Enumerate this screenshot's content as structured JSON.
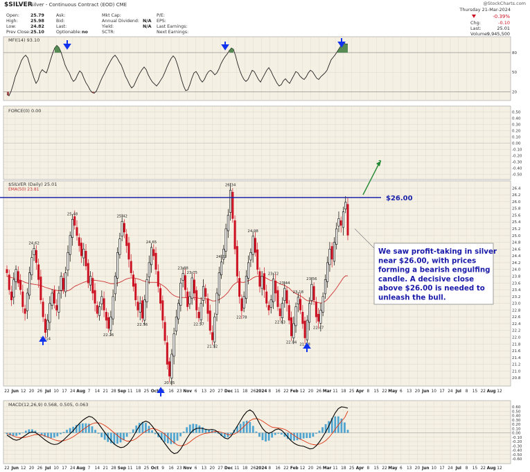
{
  "header": {
    "symbol_title": "$SILVER",
    "subtitle": "Silver - Continuous Contract (EOD) CME",
    "credit": "@StockCharts.com",
    "date": "Thursday  21-Mar-2024",
    "quote_col1": [
      [
        "Open:",
        "25.79"
      ],
      [
        "High:",
        "25.98"
      ],
      [
        "Low:",
        "24.82"
      ],
      [
        "Prev Close:",
        "25.10"
      ]
    ],
    "quote_col2": [
      [
        "Ask:",
        ""
      ],
      [
        "Bid:",
        ""
      ],
      [
        "Last:",
        ""
      ],
      [
        "Optionable:",
        "no"
      ]
    ],
    "quote_col3": [
      [
        "Mkt Cap:",
        ""
      ],
      [
        "Annual Dividend:",
        "N/A"
      ],
      [
        "Yield:",
        "N/A"
      ],
      [
        "SCTR:",
        ""
      ]
    ],
    "quote_col4": [
      [
        "P/E:",
        ""
      ],
      [
        "EPS:",
        ""
      ],
      [
        "Last Earnings:",
        ""
      ],
      [
        "Next Earnings:",
        ""
      ]
    ],
    "change_pct": "-0.39%",
    "chg_label": "Chg:",
    "chg_value": "-0.10",
    "last_label": "Last:",
    "last_value": "25.01",
    "volume_label": "Volume:",
    "volume_value": "9,945,500"
  },
  "panels": {
    "mfi_label": "MFI(14) 93.10",
    "force_label": "FORCE(0) 0.00",
    "price_label": "$SILVER (Daily) 25.01",
    "ema_label": "EMA(50) 23.81",
    "macd_label": "MACD(12,26,9) 0.568, 0.505, 0.063"
  },
  "annotation": {
    "level_label": "$26.00",
    "question_mark": "?",
    "note_lines": [
      "We saw profit-taking in silver",
      "near $26.00, with prices",
      "forming a bearish engulfing",
      "candle. A decisive close",
      "above $26.00 is needed to",
      "unleash the bull."
    ]
  },
  "colors": {
    "panel_bg": "#f5f0e4",
    "grid": "#ddd6c6",
    "price_up": "#000000",
    "price_down": "#cc1122",
    "ema": "#cc3333",
    "resistance": "#1a22aa",
    "macd_line": "#000000",
    "signal_line": "#dd3311",
    "histogram": "#3399cc",
    "arrow_blue": "#1133ee",
    "arrow_green": "#228833",
    "note_text": "#1a1aaa"
  },
  "x_axis": {
    "labels": [
      "22",
      "Jun",
      "12",
      "20",
      "26",
      "Jul",
      "10",
      "17",
      "24",
      "Aug",
      "7",
      "14",
      "21",
      "28",
      "Sep",
      "11",
      "18",
      "25",
      "Oct",
      "9",
      "16",
      "23",
      "Nov",
      "6",
      "13",
      "20",
      "27",
      "Dec",
      "11",
      "18",
      "26",
      "2024",
      "8",
      "16",
      "22",
      "Feb",
      "12",
      "20",
      "26",
      "Mar",
      "11",
      "18",
      "25",
      "Apr",
      "8",
      "15",
      "22",
      "May",
      "6",
      "13",
      "20",
      "Jun",
      "10",
      "17",
      "24",
      "Jul",
      "8",
      "15",
      "22",
      "Aug",
      "12"
    ]
  },
  "chart_data": [
    {
      "type": "line",
      "name": "MFI(14)",
      "y_ticks": [
        "80",
        "50",
        "20"
      ],
      "ylim": [
        10,
        100
      ],
      "reference_lines": [
        80,
        20
      ],
      "values": [
        16,
        14,
        21,
        31,
        43,
        51,
        59,
        68,
        73,
        76,
        72,
        61,
        51,
        41,
        33,
        38,
        49,
        54,
        51,
        49,
        58,
        69,
        79,
        87,
        91,
        88,
        81,
        71,
        61,
        54,
        49,
        41,
        36,
        39,
        46,
        52,
        49,
        41,
        34,
        29,
        23,
        19,
        18,
        21,
        28,
        36,
        43,
        49,
        56,
        62,
        68,
        73,
        76,
        72,
        66,
        61,
        53,
        44,
        38,
        31,
        26,
        29,
        36,
        43,
        49,
        54,
        58,
        54,
        46,
        40,
        35,
        32,
        29,
        33,
        38,
        43,
        50,
        58,
        65,
        71,
        75,
        71,
        62,
        51,
        39,
        29,
        22,
        23,
        31,
        41,
        49,
        51,
        46,
        39,
        35,
        39,
        46,
        51,
        53,
        50,
        46,
        49,
        55,
        63,
        69,
        74,
        78,
        83,
        87,
        85,
        75,
        63,
        53,
        45,
        39,
        36,
        39,
        46,
        53,
        51,
        45,
        39,
        35,
        41,
        47,
        53,
        57,
        52,
        45,
        39,
        33,
        29,
        31,
        37,
        40,
        36,
        33,
        39,
        45,
        51,
        49,
        44,
        41,
        39,
        43,
        49,
        53,
        51,
        46,
        41,
        39,
        43,
        46,
        49,
        53,
        61,
        69,
        73,
        77,
        82,
        87,
        92,
        95,
        93,
        93
      ]
    },
    {
      "type": "line",
      "name": "FORCE(0)",
      "y_ticks": [
        "0.50",
        "0.40",
        "0.30",
        "0.20",
        "0.10",
        "0.00",
        "-0.10",
        "-0.20",
        "-0.30",
        "-0.40",
        "-0.50"
      ],
      "ylim": [
        -0.55,
        0.55
      ],
      "values": []
    },
    {
      "type": "candlestick",
      "name": "$SILVER (Daily)",
      "y_ticks": [
        "26.4",
        "26.2",
        "26.0",
        "25.8",
        "25.6",
        "25.4",
        "25.2",
        "25.0",
        "24.8",
        "24.6",
        "24.4",
        "24.2",
        "24.0",
        "23.8",
        "23.6",
        "23.4",
        "23.2",
        "23.0",
        "22.8",
        "22.6",
        "22.4",
        "22.2",
        "22.0",
        "21.8",
        "21.6",
        "21.4",
        "21.2",
        "21.0",
        "20.8"
      ],
      "ylim": [
        20.6,
        26.55
      ],
      "resistance": 26.0,
      "closes": [
        23.9,
        23.4,
        23.1,
        23.7,
        24.0,
        23.6,
        23.4,
        22.9,
        22.7,
        23.3,
        23.9,
        24.35,
        24.62,
        24.2,
        23.7,
        23.1,
        22.6,
        22.14,
        22.5,
        23.0,
        23.3,
        23.0,
        22.8,
        23.3,
        23.8,
        23.4,
        23.9,
        24.5,
        25.0,
        25.48,
        25.3,
        25.0,
        24.7,
        24.4,
        24.6,
        24.1,
        23.6,
        23.8,
        23.3,
        23.0,
        22.7,
        22.9,
        23.2,
        22.8,
        22.5,
        22.26,
        22.6,
        23.2,
        23.8,
        24.5,
        24.9,
        25.42,
        25.1,
        24.7,
        24.3,
        23.9,
        23.5,
        23.1,
        22.8,
        23.0,
        22.56,
        23.1,
        23.7,
        24.2,
        24.65,
        24.4,
        24.0,
        23.5,
        23.0,
        22.5,
        21.9,
        21.2,
        20.85,
        21.5,
        22.1,
        22.6,
        23.0,
        23.6,
        23.88,
        23.4,
        22.9,
        23.2,
        23.75,
        23.3,
        22.8,
        22.57,
        23.0,
        23.5,
        23.2,
        22.7,
        22.2,
        21.92,
        22.6,
        23.3,
        23.9,
        24.22,
        24.6,
        25.2,
        25.6,
        26.34,
        25.5,
        24.6,
        23.8,
        23.2,
        22.78,
        23.2,
        23.8,
        24.2,
        24.5,
        24.98,
        24.5,
        24.0,
        23.5,
        23.8,
        23.4,
        23.0,
        22.8,
        23.1,
        23.72,
        23.3,
        22.9,
        22.63,
        23.0,
        23.44,
        23.0,
        22.5,
        22.04,
        22.4,
        22.9,
        23.18,
        22.8,
        22.4,
        21.98,
        22.5,
        23.0,
        23.56,
        23.1,
        22.6,
        22.47,
        22.8,
        23.2,
        23.7,
        24.2,
        24.6,
        24.3,
        24.8,
        25.2,
        25.5,
        25.3,
        25.7,
        25.98,
        25.01
      ],
      "ema_values": [
        23.8,
        23.78,
        23.76,
        23.74,
        23.72,
        23.7,
        23.68,
        23.65,
        23.62,
        23.6,
        23.58,
        23.57,
        23.56,
        23.55,
        23.54,
        23.52,
        23.5,
        23.47,
        23.45,
        23.43,
        23.41,
        23.4,
        23.38,
        23.37,
        23.37,
        23.37,
        23.37,
        23.37,
        23.4,
        23.45,
        23.5,
        23.53,
        23.56,
        23.59,
        23.62,
        23.64,
        23.66,
        23.67,
        23.68,
        23.68,
        23.67,
        23.66,
        23.65,
        23.64,
        23.62,
        23.6,
        23.58,
        23.58,
        23.58,
        23.6,
        23.62,
        23.65,
        23.69,
        23.72,
        23.74,
        23.75,
        23.75,
        23.74,
        23.72,
        23.7,
        23.67,
        23.65,
        23.63,
        23.62,
        23.62,
        23.62,
        23.62,
        23.6,
        23.57,
        23.53,
        23.48,
        23.42,
        23.34,
        23.28,
        23.23,
        23.2,
        23.18,
        23.17,
        23.17,
        23.17,
        23.16,
        23.16,
        23.17,
        23.17,
        23.16,
        23.15,
        23.14,
        23.14,
        23.14,
        23.12,
        23.1,
        23.07,
        23.07,
        23.08,
        23.11,
        23.15,
        23.2,
        23.26,
        23.33,
        23.43,
        23.52,
        23.58,
        23.62,
        23.64,
        23.62,
        23.62,
        23.64,
        23.67,
        23.7,
        23.75,
        23.78,
        23.8,
        23.79,
        23.79,
        23.77,
        23.74,
        23.7,
        23.67,
        23.67,
        23.64,
        23.61,
        23.57,
        23.55,
        23.53,
        23.49,
        23.45,
        23.38,
        23.33,
        23.29,
        23.25,
        23.22,
        23.18,
        23.12,
        23.08,
        23.07,
        23.07,
        23.06,
        23.04,
        23.02,
        23.01,
        23.02,
        23.06,
        23.12,
        23.2,
        23.28,
        23.36,
        23.45,
        23.55,
        23.65,
        23.75,
        23.81,
        23.81
      ],
      "callouts": [
        {
          "value": "24.62",
          "price": 24.62,
          "at": 12,
          "pos": "above"
        },
        {
          "value": "22.14",
          "price": 22.14,
          "at": 17,
          "pos": "below"
        },
        {
          "value": "25.48",
          "price": 25.48,
          "at": 29,
          "pos": "above"
        },
        {
          "value": "22.26",
          "price": 22.26,
          "at": 45,
          "pos": "below"
        },
        {
          "value": "25.42",
          "price": 25.42,
          "at": 51,
          "pos": "above"
        },
        {
          "value": "22.56",
          "price": 22.56,
          "at": 60,
          "pos": "below"
        },
        {
          "value": "24.65",
          "price": 24.65,
          "at": 64,
          "pos": "above"
        },
        {
          "value": "20.85",
          "price": 20.85,
          "at": 72,
          "pos": "below"
        },
        {
          "value": "23.88",
          "price": 23.88,
          "at": 78,
          "pos": "above"
        },
        {
          "value": "23.75",
          "price": 23.75,
          "at": 82,
          "pos": "above"
        },
        {
          "value": "22.57",
          "price": 22.57,
          "at": 85,
          "pos": "below"
        },
        {
          "value": "21.92",
          "price": 21.92,
          "at": 91,
          "pos": "below"
        },
        {
          "value": "24.22",
          "price": 24.22,
          "at": 95,
          "pos": "above"
        },
        {
          "value": "26.34",
          "price": 26.34,
          "at": 99,
          "pos": "above"
        },
        {
          "value": "22.78",
          "price": 22.78,
          "at": 104,
          "pos": "below"
        },
        {
          "value": "24.98",
          "price": 24.98,
          "at": 109,
          "pos": "above"
        },
        {
          "value": "23.72",
          "price": 23.72,
          "at": 118,
          "pos": "above"
        },
        {
          "value": "22.63",
          "price": 22.63,
          "at": 121,
          "pos": "below"
        },
        {
          "value": "23.44",
          "price": 23.44,
          "at": 123,
          "pos": "above"
        },
        {
          "value": "22.04",
          "price": 22.04,
          "at": 126,
          "pos": "below"
        },
        {
          "value": "23.18",
          "price": 23.18,
          "at": 129,
          "pos": "above"
        },
        {
          "value": "21.98",
          "price": 21.98,
          "at": 132,
          "pos": "below"
        },
        {
          "value": "23.56",
          "price": 23.56,
          "at": 135,
          "pos": "above"
        },
        {
          "value": "22.47",
          "price": 22.47,
          "at": 138,
          "pos": "below"
        }
      ]
    },
    {
      "type": "line",
      "name": "MACD(12,26,9)",
      "y_ticks": [
        "0.60",
        "0.50",
        "0.40",
        "0.30",
        "0.20",
        "0.10",
        "0.00",
        "-0.10",
        "-0.20",
        "-0.30",
        "-0.40",
        "-0.50",
        "-0.60"
      ],
      "ylim": [
        -0.68,
        0.68
      ],
      "macd": [
        -0.05,
        -0.1,
        -0.15,
        -0.17,
        -0.15,
        -0.1,
        -0.05,
        0.0,
        0.02,
        0.01,
        -0.04,
        -0.1,
        -0.16,
        -0.21,
        -0.25,
        -0.27,
        -0.26,
        -0.22,
        -0.16,
        -0.09,
        -0.02,
        0.05,
        0.14,
        0.22,
        0.29,
        0.34,
        0.38,
        0.36,
        0.3,
        0.21,
        0.11,
        0.01,
        -0.09,
        -0.18,
        -0.26,
        -0.31,
        -0.34,
        -0.33,
        -0.28,
        -0.2,
        -0.09,
        0.04,
        0.16,
        0.24,
        0.27,
        0.24,
        0.16,
        0.06,
        -0.04,
        -0.14,
        -0.24,
        -0.34,
        -0.43,
        -0.48,
        -0.46,
        -0.38,
        -0.26,
        -0.13,
        -0.02,
        0.06,
        0.1,
        0.11,
        0.1,
        0.08,
        0.07,
        0.08,
        0.06,
        0.01,
        -0.06,
        -0.12,
        -0.14,
        -0.08,
        0.04,
        0.16,
        0.28,
        0.4,
        0.49,
        0.53,
        0.48,
        0.36,
        0.22,
        0.1,
        0.02,
        -0.01,
        0.02,
        0.07,
        0.09,
        0.06,
        -0.01,
        -0.1,
        -0.18,
        -0.24,
        -0.28,
        -0.3,
        -0.31,
        -0.34,
        -0.37,
        -0.36,
        -0.3,
        -0.21,
        -0.1,
        0.02,
        0.16,
        0.32,
        0.46,
        0.56,
        0.6,
        0.59,
        0.57
      ],
      "signal": [
        -0.02,
        -0.04,
        -0.07,
        -0.1,
        -0.11,
        -0.11,
        -0.1,
        -0.08,
        -0.06,
        -0.04,
        -0.04,
        -0.05,
        -0.07,
        -0.1,
        -0.13,
        -0.16,
        -0.18,
        -0.19,
        -0.18,
        -0.16,
        -0.13,
        -0.09,
        -0.04,
        0.01,
        0.07,
        0.12,
        0.17,
        0.21,
        0.23,
        0.23,
        0.21,
        0.17,
        0.12,
        0.06,
        0.0,
        -0.06,
        -0.12,
        -0.16,
        -0.19,
        -0.19,
        -0.17,
        -0.13,
        -0.07,
        -0.01,
        0.04,
        0.08,
        0.1,
        0.09,
        0.06,
        0.02,
        -0.03,
        -0.1,
        -0.17,
        -0.23,
        -0.28,
        -0.3,
        -0.29,
        -0.26,
        -0.21,
        -0.15,
        -0.1,
        -0.06,
        -0.03,
        -0.01,
        0.0,
        0.02,
        0.03,
        0.03,
        0.01,
        -0.01,
        -0.04,
        -0.05,
        -0.03,
        0.01,
        0.07,
        0.14,
        0.21,
        0.28,
        0.32,
        0.33,
        0.31,
        0.27,
        0.22,
        0.17,
        0.13,
        0.12,
        0.11,
        0.1,
        0.08,
        0.04,
        -0.01,
        -0.06,
        -0.11,
        -0.15,
        -0.18,
        -0.22,
        -0.25,
        -0.27,
        -0.28,
        -0.26,
        -0.23,
        -0.18,
        -0.11,
        -0.02,
        0.08,
        0.18,
        0.27,
        0.35,
        0.5
      ]
    }
  ]
}
